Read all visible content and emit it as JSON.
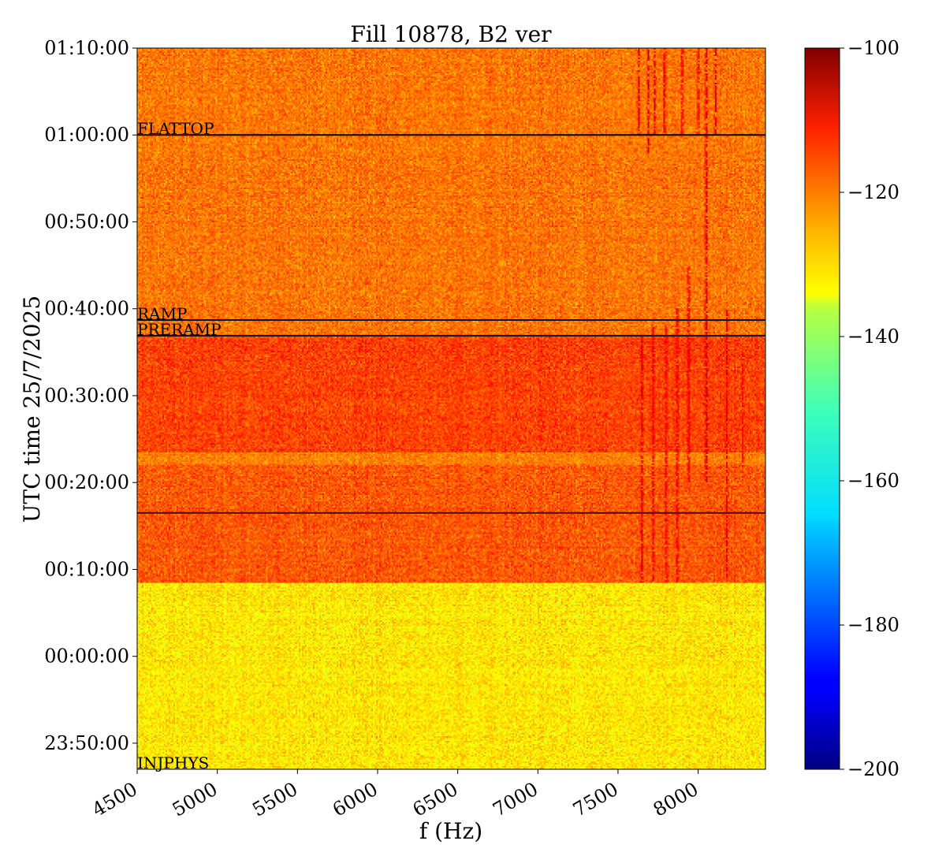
{
  "chart_data": {
    "type": "heatmap",
    "title": "Fill 10878, B2 ver",
    "xlabel": "f (Hz)",
    "ylabel": "UTC time 25/7/2025",
    "xlim": [
      4500,
      8420
    ],
    "ylim_minutes": [
      -13,
      70
    ],
    "x_ticks": [
      {
        "value": 4500,
        "label": "4500"
      },
      {
        "value": 5000,
        "label": "5000"
      },
      {
        "value": 5500,
        "label": "5500"
      },
      {
        "value": 6000,
        "label": "6000"
      },
      {
        "value": 6500,
        "label": "6500"
      },
      {
        "value": 7000,
        "label": "7000"
      },
      {
        "value": 7500,
        "label": "7500"
      },
      {
        "value": 8000,
        "label": "8000"
      }
    ],
    "y_ticks": [
      {
        "minutes": 70,
        "label": "01:10:00"
      },
      {
        "minutes": 60,
        "label": "01:00:00"
      },
      {
        "minutes": 50,
        "label": "00:50:00"
      },
      {
        "minutes": 40,
        "label": "00:40:00"
      },
      {
        "minutes": 30,
        "label": "00:30:00"
      },
      {
        "minutes": 20,
        "label": "00:20:00"
      },
      {
        "minutes": 10,
        "label": "00:10:00"
      },
      {
        "minutes": 0,
        "label": "00:00:00"
      },
      {
        "minutes": -10,
        "label": "23:50:00"
      }
    ],
    "colorbar": {
      "colormap": "jet",
      "min": -200,
      "max": -100,
      "ticks": [
        {
          "value": -100,
          "label": "−100"
        },
        {
          "value": -120,
          "label": "−120"
        },
        {
          "value": -140,
          "label": "−140"
        },
        {
          "value": -160,
          "label": "−160"
        },
        {
          "value": -180,
          "label": "−180"
        },
        {
          "value": -200,
          "label": "−200"
        }
      ]
    },
    "events": [
      {
        "label": "FLATTOP",
        "minutes": 60,
        "color": "#000000"
      },
      {
        "label": "RAMP",
        "minutes": 38.7,
        "color": "#000000"
      },
      {
        "label": "PRERAMP",
        "minutes": 36.9,
        "color": "#000000"
      },
      {
        "label": "INJPHYS",
        "minutes": -13,
        "color": "#000000"
      },
      {
        "label": "",
        "minutes": 16.5,
        "color": "#5a0000"
      }
    ],
    "regions": [
      {
        "minutes_from": -13,
        "minutes_to": 8.5,
        "mean_db": -135,
        "spread_db": 4
      },
      {
        "minutes_from": 8.5,
        "minutes_to": 22,
        "mean_db": -121,
        "spread_db": 4
      },
      {
        "minutes_from": 22,
        "minutes_to": 23.5,
        "mean_db": -125,
        "spread_db": 3
      },
      {
        "minutes_from": 23.5,
        "minutes_to": 37,
        "mean_db": -119,
        "spread_db": 4
      },
      {
        "minutes_from": 37,
        "minutes_to": 70,
        "mean_db": -124,
        "spread_db": 4
      }
    ],
    "spectral_lines": [
      {
        "freq_hz": 7650,
        "minutes_from": 8.5,
        "minutes_to": 37,
        "level_db": -109
      },
      {
        "freq_hz": 7720,
        "minutes_from": 8.5,
        "minutes_to": 38,
        "level_db": -110
      },
      {
        "freq_hz": 7800,
        "minutes_from": 8.5,
        "minutes_to": 38,
        "level_db": -110
      },
      {
        "freq_hz": 7870,
        "minutes_from": 8.5,
        "minutes_to": 40,
        "level_db": -108
      },
      {
        "freq_hz": 7940,
        "minutes_from": 20,
        "minutes_to": 45,
        "level_db": -108
      },
      {
        "freq_hz": 8050,
        "minutes_from": 20,
        "minutes_to": 70,
        "level_db": -105
      },
      {
        "freq_hz": 8180,
        "minutes_from": 9,
        "minutes_to": 40,
        "level_db": -110
      },
      {
        "freq_hz": 8280,
        "minutes_from": 20,
        "minutes_to": 35,
        "level_db": -112
      },
      {
        "freq_hz": 7630,
        "minutes_from": 60,
        "minutes_to": 70,
        "level_db": -108
      },
      {
        "freq_hz": 7690,
        "minutes_from": 58,
        "minutes_to": 70,
        "level_db": -108
      },
      {
        "freq_hz": 7730,
        "minutes_from": 60,
        "minutes_to": 70,
        "level_db": -108
      },
      {
        "freq_hz": 7790,
        "minutes_from": 60,
        "minutes_to": 70,
        "level_db": -108
      },
      {
        "freq_hz": 7900,
        "minutes_from": 60,
        "minutes_to": 70,
        "level_db": -109
      },
      {
        "freq_hz": 8000,
        "minutes_from": 60,
        "minutes_to": 70,
        "level_db": -109
      },
      {
        "freq_hz": 8110,
        "minutes_from": 60,
        "minutes_to": 70,
        "level_db": -108
      }
    ]
  }
}
